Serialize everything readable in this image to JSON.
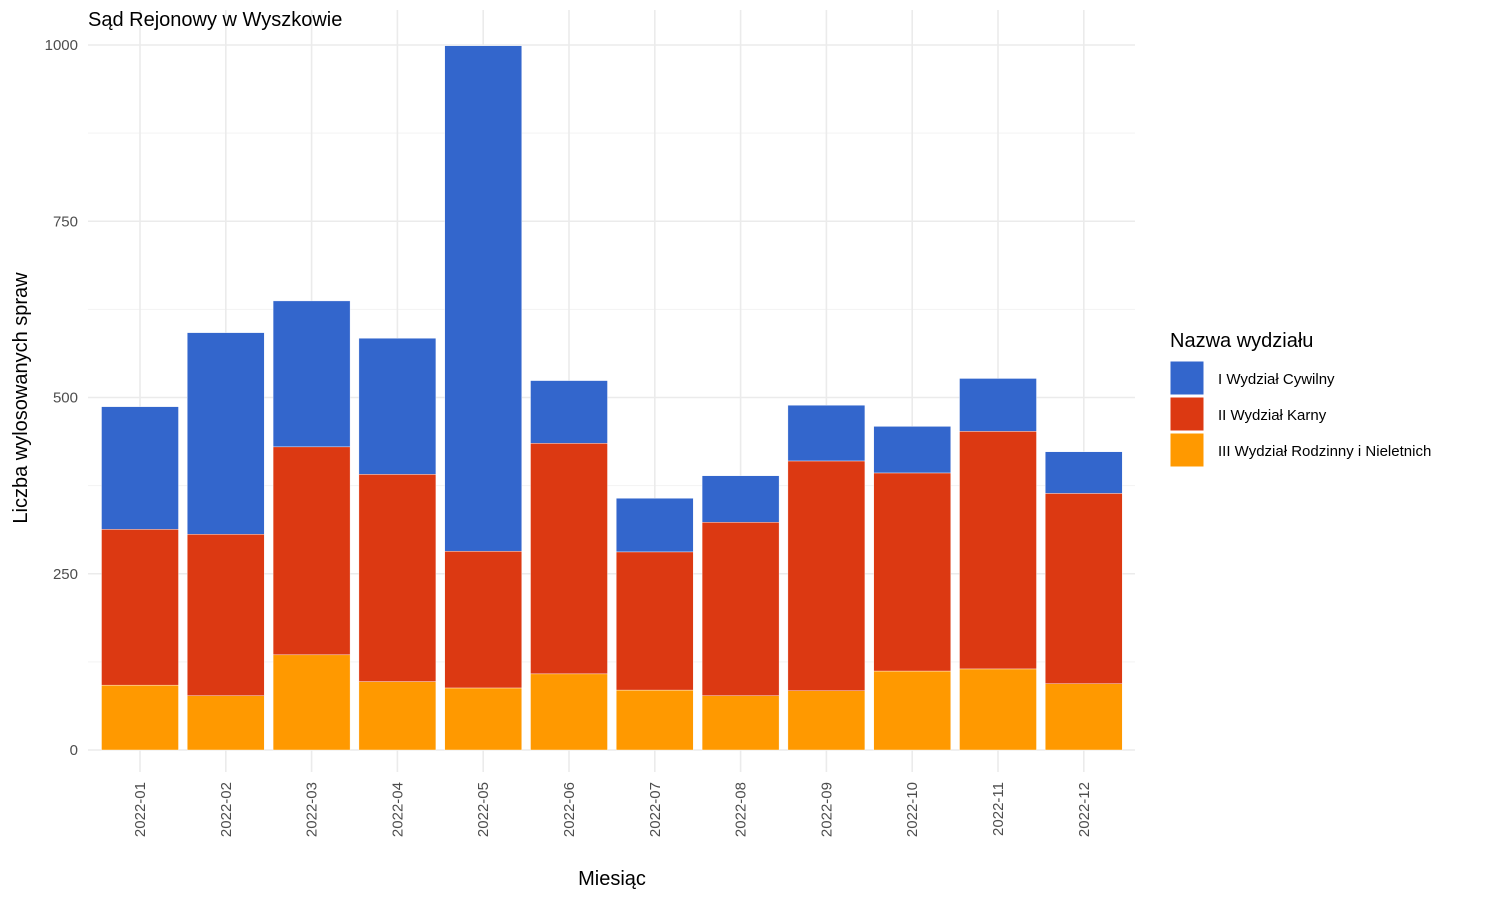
{
  "chart_data": {
    "type": "bar",
    "stacked": true,
    "title": "Sąd Rejonowy w Wyszkowie",
    "xlabel": "Miesiąc",
    "ylabel": "Liczba wylosowanych spraw",
    "ylim": [
      0,
      1000
    ],
    "yticks": [
      0,
      250,
      500,
      750,
      1000
    ],
    "grid": true,
    "legend_title": "Nazwa wydziału",
    "legend_position": "right",
    "categories": [
      "2022-01",
      "2022-02",
      "2022-03",
      "2022-04",
      "2022-05",
      "2022-06",
      "2022-07",
      "2022-08",
      "2022-09",
      "2022-10",
      "2022-11",
      "2022-12"
    ],
    "series": [
      {
        "name": "III Wydział Rodzinny i Nieletnich",
        "color": "#ff9900",
        "values": [
          92,
          77,
          135,
          97,
          88,
          108,
          85,
          77,
          84,
          112,
          115,
          94
        ]
      },
      {
        "name": "II Wydział Karny",
        "color": "#dc3912",
        "values": [
          221,
          229,
          295,
          294,
          194,
          327,
          196,
          246,
          326,
          281,
          337,
          270
        ]
      },
      {
        "name": "I Wydział Cywilny",
        "color": "#3366cc",
        "values": [
          174,
          286,
          207,
          193,
          717,
          89,
          76,
          66,
          79,
          66,
          75,
          59
        ]
      }
    ],
    "legend_order": [
      "I Wydział Cywilny",
      "II Wydział Karny",
      "III Wydział Rodzinny i Nieletnich"
    ]
  }
}
